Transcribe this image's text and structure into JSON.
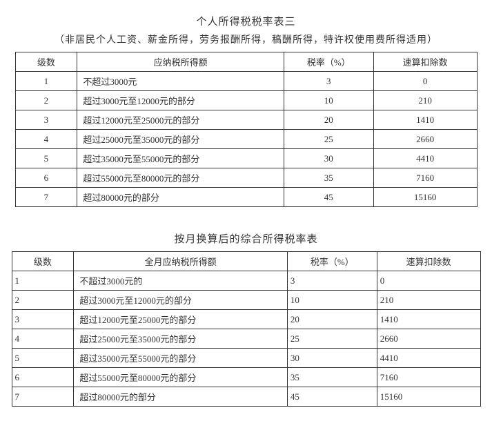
{
  "section1": {
    "title": "个人所得税税率表三",
    "subtitle": "（非居民个人工资、薪金所得，劳务报酬所得，稿酬所得，特许权使用费所得适用）",
    "columns": [
      "级数",
      "应纳税所得额",
      "税率（%）",
      "速算扣除数"
    ],
    "rows": [
      {
        "level": "1",
        "range": "不超过3000元",
        "rate": "3",
        "deduct": "0"
      },
      {
        "level": "2",
        "range": "超过3000元至12000元的部分",
        "rate": "10",
        "deduct": "210"
      },
      {
        "level": "3",
        "range": "超过12000元至25000元的部分",
        "rate": "20",
        "deduct": "1410"
      },
      {
        "level": "4",
        "range": "超过25000元至35000元的部分",
        "rate": "25",
        "deduct": "2660"
      },
      {
        "level": "5",
        "range": "超过35000元至55000元的部分",
        "rate": "30",
        "deduct": "4410"
      },
      {
        "level": "6",
        "range": "超过55000元至80000元的部分",
        "rate": "35",
        "deduct": "7160"
      },
      {
        "level": "7",
        "range": "超过80000元的部分",
        "rate": "45",
        "deduct": "15160"
      }
    ]
  },
  "section2": {
    "title": "按月换算后的综合所得税率表",
    "columns": [
      "级数",
      "全月应纳税所得额",
      "税率（%）",
      "速算扣除数"
    ],
    "rows": [
      {
        "level": "1",
        "range": "不超过3000元的",
        "rate": "3",
        "deduct": "0"
      },
      {
        "level": "2",
        "range": "超过3000元至12000元的部分",
        "rate": "10",
        "deduct": "210"
      },
      {
        "level": "3",
        "range": "超过12000元至25000元的部分",
        "rate": "20",
        "deduct": "1410"
      },
      {
        "level": "4",
        "range": "超过25000元至35000元的部分",
        "rate": "25",
        "deduct": "2660"
      },
      {
        "level": "5",
        "range": "超过35000元至55000元的部分",
        "rate": "30",
        "deduct": "4410"
      },
      {
        "level": "6",
        "range": "超过55000元至80000元的部分",
        "rate": "35",
        "deduct": "7160"
      },
      {
        "level": "7",
        "range": "超过80000元的部分",
        "rate": "45",
        "deduct": "15160"
      }
    ]
  }
}
